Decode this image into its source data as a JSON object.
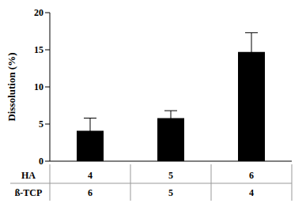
{
  "chart_data": {
    "type": "bar",
    "y_label": "Dissolution (%)",
    "category_rows": [
      {
        "name": "HA",
        "values": [
          4,
          5,
          6
        ]
      },
      {
        "name": "ß-TCP",
        "values": [
          6,
          5,
          4
        ]
      }
    ],
    "values": [
      4.1,
      5.8,
      14.7
    ],
    "errors": [
      1.7,
      1.0,
      2.6
    ],
    "color": "#000000",
    "ylim": [
      0,
      20
    ],
    "yticks": [
      0,
      5,
      10,
      15,
      20
    ],
    "grid": false
  }
}
